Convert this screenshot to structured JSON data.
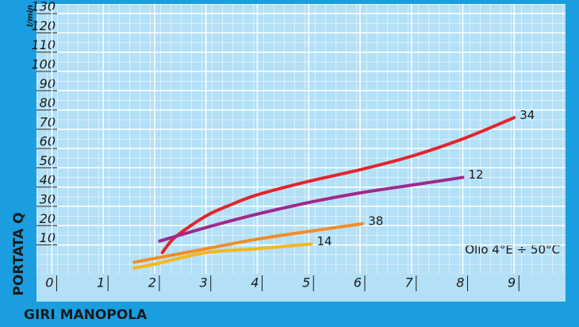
{
  "chart_data": {
    "type": "line",
    "y_axis_label": "PORTATA Q",
    "x_axis_label": "GIRI MANOPOLA",
    "y_unit": "l/min",
    "annotation": "Olio 4°E ÷ 50°C",
    "xlim": [
      -0.3,
      10
    ],
    "ylim": [
      -5,
      135
    ],
    "xticks": [
      0,
      1,
      2,
      3,
      4,
      5,
      6,
      7,
      8,
      9
    ],
    "yticks": [
      10,
      20,
      30,
      40,
      50,
      60,
      70,
      80,
      90,
      100,
      110,
      120,
      130
    ],
    "grid": true,
    "series": [
      {
        "name": "34",
        "color": "#e3242b",
        "x": [
          2.15,
          2.4,
          3,
          3.5,
          4,
          5,
          6,
          7,
          8,
          9
        ],
        "values": [
          6,
          14,
          25,
          31,
          36,
          43,
          49,
          56,
          65,
          76
        ]
      },
      {
        "name": "12",
        "color": "#a0288c",
        "x": [
          2.1,
          3,
          4,
          5,
          6,
          7,
          8
        ],
        "values": [
          12,
          19,
          26,
          32,
          37,
          41,
          45
        ]
      },
      {
        "name": "38",
        "color": "#f28c28",
        "x": [
          1.6,
          2,
          3,
          4,
          5,
          6.05
        ],
        "values": [
          1,
          3,
          8,
          13,
          17,
          21
        ]
      },
      {
        "name": "14",
        "color": "#f5b81e",
        "x": [
          1.6,
          2,
          3,
          4,
          5.05
        ],
        "values": [
          -2,
          0,
          6,
          8,
          10.5
        ]
      }
    ]
  }
}
